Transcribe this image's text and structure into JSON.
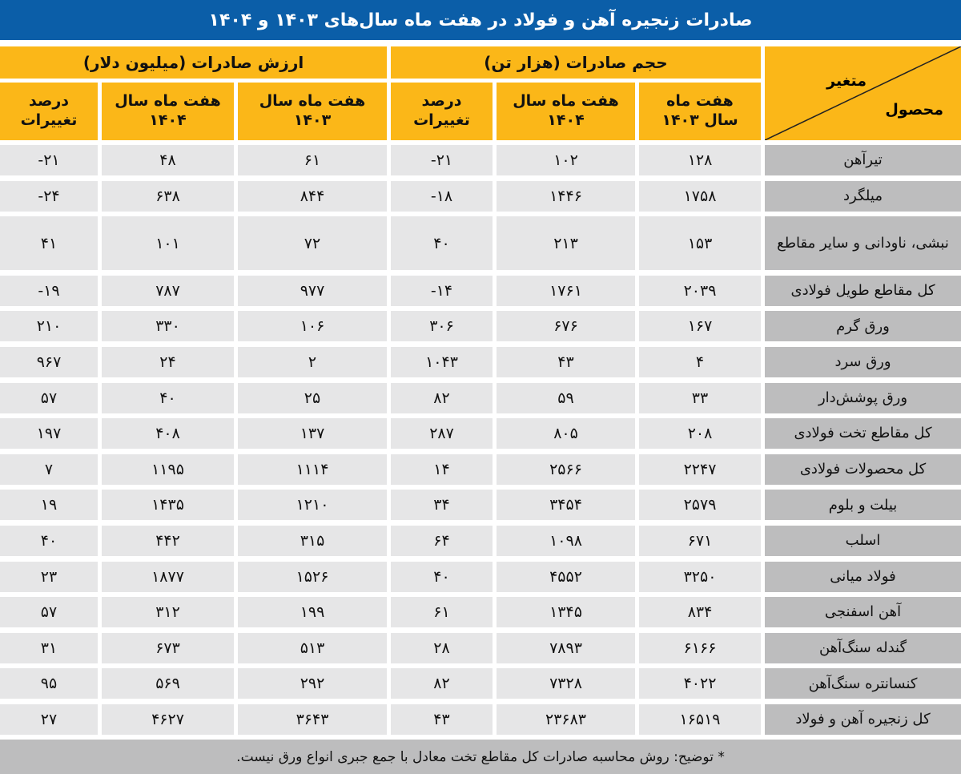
{
  "title": "صادرات زنجیره آهن و فولاد در هفت ماه سال‌های ۱۴۰۳ و ۱۴۰۴",
  "colors": {
    "title_bg": "#0b5ea8",
    "header_bg": "#fbb718",
    "product_bg": "#bdbdbe",
    "cell_bg": "#e6e6e7"
  },
  "header": {
    "corner_variable": "متغیر",
    "corner_product": "محصول",
    "group_volume": "حجم صادرات (هزار تن)",
    "group_value": "ارزش صادرات (میلیون دلار)",
    "columns": [
      "هفت ماه سال ۱۴۰۳",
      "هفت ماه سال ۱۴۰۴",
      "درصد تغییرات",
      "هفت ماه سال ۱۴۰۳",
      "هفت ماه سال ۱۴۰۴",
      "درصد تغییرات"
    ]
  },
  "rows": [
    {
      "product": "تیرآهن",
      "values": [
        "۱۲۸",
        "۱۰۲",
        "-۲۱",
        "۶۱",
        "۴۸",
        "-۲۱"
      ]
    },
    {
      "product": "میلگرد",
      "values": [
        "۱۷۵۸",
        "۱۴۴۶",
        "-۱۸",
        "۸۴۴",
        "۶۳۸",
        "-۲۴"
      ]
    },
    {
      "product": "نبشی، ناودانی و سایر مقاطع",
      "values": [
        "۱۵۳",
        "۲۱۳",
        "۴۰",
        "۷۲",
        "۱۰۱",
        "۴۱"
      ]
    },
    {
      "product": "کل مقاطع طویل فولادی",
      "values": [
        "۲۰۳۹",
        "۱۷۶۱",
        "-۱۴",
        "۹۷۷",
        "۷۸۷",
        "-۱۹"
      ]
    },
    {
      "product": "ورق گرم",
      "values": [
        "۱۶۷",
        "۶۷۶",
        "۳۰۶",
        "۱۰۶",
        "۳۳۰",
        "۲۱۰"
      ]
    },
    {
      "product": "ورق سرد",
      "values": [
        "۴",
        "۴۳",
        "۱۰۴۳",
        "۲",
        "۲۴",
        "۹۶۷"
      ]
    },
    {
      "product": "ورق پوشش‌دار",
      "values": [
        "۳۳",
        "۵۹",
        "۸۲",
        "۲۵",
        "۴۰",
        "۵۷"
      ]
    },
    {
      "product": "کل مقاطع تخت فولادی",
      "values": [
        "۲۰۸",
        "۸۰۵",
        "۲۸۷",
        "۱۳۷",
        "۴۰۸",
        "۱۹۷"
      ]
    },
    {
      "product": "کل محصولات فولادی",
      "values": [
        "۲۲۴۷",
        "۲۵۶۶",
        "۱۴",
        "۱۱۱۴",
        "۱۱۹۵",
        "۷"
      ]
    },
    {
      "product": "بیلت و بلوم",
      "values": [
        "۲۵۷۹",
        "۳۴۵۴",
        "۳۴",
        "۱۲۱۰",
        "۱۴۳۵",
        "۱۹"
      ]
    },
    {
      "product": "اسلب",
      "values": [
        "۶۷۱",
        "۱۰۹۸",
        "۶۴",
        "۳۱۵",
        "۴۴۲",
        "۴۰"
      ]
    },
    {
      "product": "فولاد میانی",
      "values": [
        "۳۲۵۰",
        "۴۵۵۲",
        "۴۰",
        "۱۵۲۶",
        "۱۸۷۷",
        "۲۳"
      ]
    },
    {
      "product": "آهن اسفنجی",
      "values": [
        "۸۳۴",
        "۱۳۴۵",
        "۶۱",
        "۱۹۹",
        "۳۱۲",
        "۵۷"
      ]
    },
    {
      "product": "گندله سنگ‌آهن",
      "values": [
        "۶۱۶۶",
        "۷۸۹۳",
        "۲۸",
        "۵۱۳",
        "۶۷۳",
        "۳۱"
      ]
    },
    {
      "product": "کنسانتره سنگ‌آهن",
      "values": [
        "۴۰۲۲",
        "۷۳۲۸",
        "۸۲",
        "۲۹۲",
        "۵۶۹",
        "۹۵"
      ]
    },
    {
      "product": "کل زنجیره آهن و فولاد",
      "values": [
        "۱۶۵۱۹",
        "۲۳۶۸۳",
        "۴۳",
        "۳۶۴۳",
        "۴۶۲۷",
        "۲۷"
      ]
    }
  ],
  "footnote": "* توضیح: روش محاسبه صادرات کل مقاطع تخت معادل با جمع جبری انواع ورق نیست."
}
